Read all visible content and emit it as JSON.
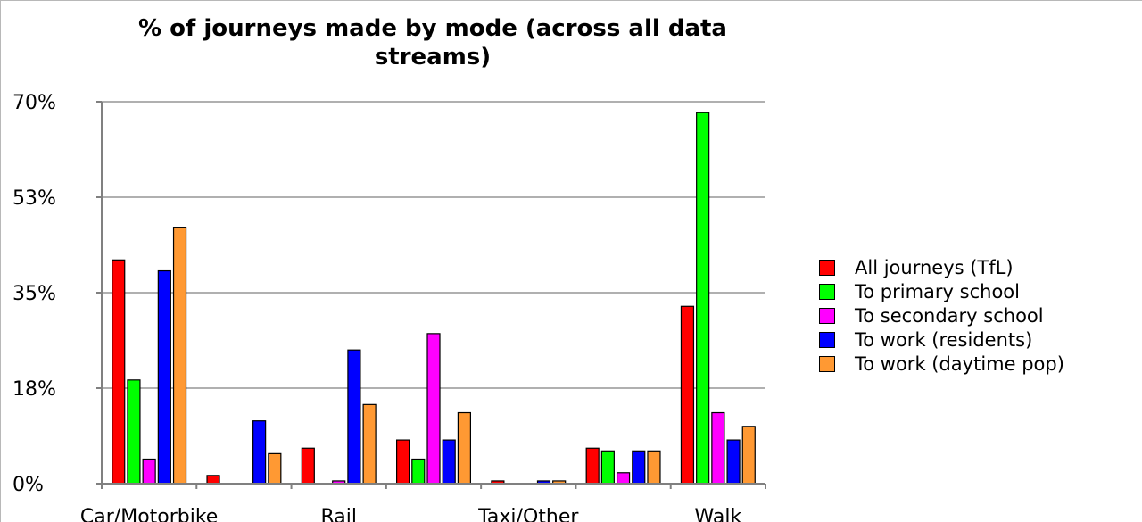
{
  "chart_data": {
    "type": "bar",
    "title": "% of journeys made by mode (across all data streams)",
    "categories": [
      "Car/Motorbike",
      "",
      "Rail",
      "",
      "Taxi/Other",
      "",
      "Walk"
    ],
    "series": [
      {
        "name": "All journeys (TfL)",
        "color": "#ff0000",
        "values": [
          41,
          1.5,
          6.5,
          8.0,
          0.5,
          6.5,
          32.5
        ]
      },
      {
        "name": "To primary school",
        "color": "#00ff00",
        "values": [
          19,
          0,
          0,
          4.5,
          0,
          6.0,
          68
        ]
      },
      {
        "name": "To secondary school",
        "color": "#ff00ff",
        "values": [
          4.5,
          0,
          0.5,
          27.5,
          0,
          2.0,
          13
        ]
      },
      {
        "name": "To work (residents)",
        "color": "#0000ff",
        "values": [
          39,
          11.5,
          24.5,
          8.0,
          0.5,
          6.0,
          8.0
        ]
      },
      {
        "name": "To work (daytime pop)",
        "color": "#ff9933",
        "values": [
          47,
          5.5,
          14.5,
          13,
          0.5,
          6.0,
          10.5
        ]
      }
    ],
    "y_ticks": [
      "0%",
      "18%",
      "35%",
      "53%",
      "70%"
    ],
    "ylim": [
      0,
      70
    ],
    "grid": true,
    "legend_position": "right"
  }
}
